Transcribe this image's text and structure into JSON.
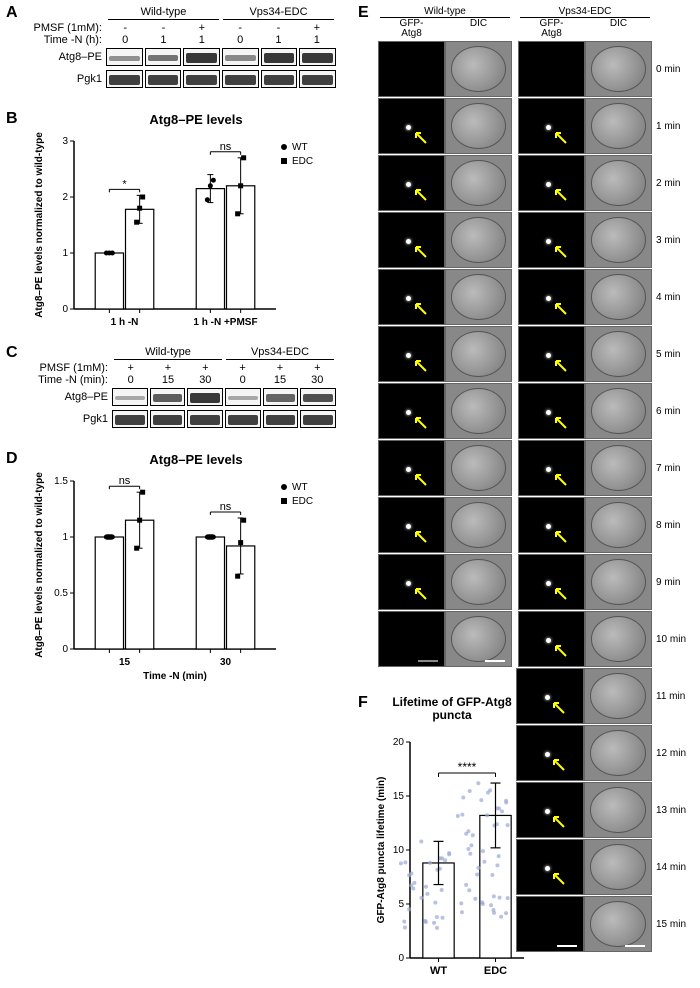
{
  "panelA": {
    "label": "A",
    "groups": [
      "Wild-type",
      "Vps34-EDC"
    ],
    "pmsf_row": "PMSF (1mM):",
    "pmsf_vals": [
      "-",
      "-",
      "+",
      "-",
      "-",
      "+"
    ],
    "time_row": "Time -N (h):",
    "time_vals": [
      "0",
      "1",
      "1",
      "0",
      "1",
      "1"
    ],
    "row1_label": "Atg8–PE",
    "row2_label": "Pgk1",
    "band1_intensities": [
      0.25,
      0.45,
      0.85,
      0.3,
      0.85,
      0.85
    ],
    "band2_intensities": [
      0.8,
      0.8,
      0.8,
      0.8,
      0.8,
      0.8
    ]
  },
  "panelB": {
    "label": "B",
    "title": "Atg8–PE levels",
    "ylabel": "Atg8–PE levels normalized to wild-type",
    "xcats": [
      "1 h -N",
      "1 h -N +PMSF"
    ],
    "legend": [
      "WT",
      "EDC"
    ],
    "legend_markers": [
      "circle",
      "square"
    ],
    "ylim": [
      0,
      3
    ],
    "yticks": [
      0,
      1,
      2,
      3
    ],
    "bars": [
      {
        "group": 0,
        "sub": 0,
        "val": 1.0,
        "err": 0.02,
        "marker": "circle",
        "points": [
          1.0,
          1.0,
          1.0
        ]
      },
      {
        "group": 0,
        "sub": 1,
        "val": 1.78,
        "err": 0.25,
        "marker": "square",
        "points": [
          1.55,
          1.8,
          2.0
        ]
      },
      {
        "group": 1,
        "sub": 0,
        "val": 2.15,
        "err": 0.25,
        "marker": "circle",
        "points": [
          1.95,
          2.2,
          2.3
        ]
      },
      {
        "group": 1,
        "sub": 1,
        "val": 2.2,
        "err": 0.5,
        "marker": "square",
        "points": [
          1.7,
          2.2,
          2.7
        ]
      }
    ],
    "sig": [
      {
        "group": 0,
        "label": "*"
      },
      {
        "group": 1,
        "label": "ns"
      }
    ],
    "colors": {
      "bar_fill": "#ffffff",
      "bar_stroke": "#000000",
      "point": "#000000"
    }
  },
  "panelC": {
    "label": "C",
    "groups": [
      "Wild-type",
      "Vps34-EDC"
    ],
    "pmsf_row": "PMSF (1mM):",
    "pmsf_vals": [
      "+",
      "+",
      "+",
      "+",
      "+",
      "+"
    ],
    "time_row": "Time -N (min):",
    "time_vals": [
      "0",
      "15",
      "30",
      "0",
      "15",
      "30"
    ],
    "row1_label": "Atg8–PE",
    "row2_label": "Pgk1",
    "band1_intensities": [
      0.1,
      0.6,
      0.85,
      0.1,
      0.55,
      0.7
    ],
    "band2_intensities": [
      0.8,
      0.8,
      0.8,
      0.8,
      0.8,
      0.8
    ]
  },
  "panelD": {
    "label": "D",
    "title": "Atg8–PE levels",
    "ylabel": "Atg8–PE levels normalized to wild-type",
    "xlabel": "Time -N (min)",
    "xcats": [
      "15",
      "30"
    ],
    "legend": [
      "WT",
      "EDC"
    ],
    "legend_markers": [
      "circle",
      "square"
    ],
    "ylim": [
      0,
      1.5
    ],
    "yticks": [
      0,
      0.5,
      1.0,
      1.5
    ],
    "bars": [
      {
        "group": 0,
        "sub": 0,
        "val": 1.0,
        "err": 0.02,
        "marker": "circle",
        "points": [
          1.0,
          1.0,
          1.0
        ]
      },
      {
        "group": 0,
        "sub": 1,
        "val": 1.15,
        "err": 0.25,
        "marker": "square",
        "points": [
          0.9,
          1.15,
          1.4
        ]
      },
      {
        "group": 1,
        "sub": 0,
        "val": 1.0,
        "err": 0.02,
        "marker": "circle",
        "points": [
          1.0,
          1.0,
          1.0
        ]
      },
      {
        "group": 1,
        "sub": 1,
        "val": 0.92,
        "err": 0.25,
        "marker": "square",
        "points": [
          0.65,
          0.95,
          1.15
        ]
      }
    ],
    "sig": [
      {
        "group": 0,
        "label": "ns"
      },
      {
        "group": 1,
        "label": "ns"
      }
    ]
  },
  "panelE": {
    "label": "E",
    "col_groups": [
      "Wild-type",
      "Vps34-EDC"
    ],
    "col_sub": [
      "GFP-Atg8",
      "DIC",
      "GFP-Atg8",
      "DIC"
    ],
    "rows": [
      "0 min",
      "1 min",
      "2 min",
      "3 min",
      "4 min",
      "5 min",
      "6 min",
      "7 min",
      "8 min",
      "9 min",
      "10 min",
      "11 min",
      "12 min",
      "13 min",
      "14 min",
      "15 min"
    ],
    "wt_arrow_rows": [
      1,
      2,
      3,
      4,
      5,
      6,
      7,
      8,
      9
    ],
    "edc_arrow_rows": [
      1,
      2,
      3,
      4,
      5,
      6,
      7,
      8,
      9,
      10,
      11,
      12,
      13,
      14
    ],
    "wt_max_row": 10,
    "arrow_color": "#ffff00",
    "scale_bar_color": "#ffffff"
  },
  "panelF": {
    "label": "F",
    "title": "Lifetime of GFP-Atg8 puncta",
    "ylabel": "GFP-Atg8 puncta lifetime (min)",
    "xcats": [
      "WT",
      "EDC"
    ],
    "ylim": [
      0,
      20
    ],
    "yticks": [
      0,
      5,
      10,
      15,
      20
    ],
    "bars": [
      {
        "val": 8.8,
        "err": 2.0
      },
      {
        "val": 13.2,
        "err": 3.0
      }
    ],
    "sig_label": "****",
    "point_color": "#9aa8d6",
    "n_points": [
      30,
      45
    ]
  }
}
